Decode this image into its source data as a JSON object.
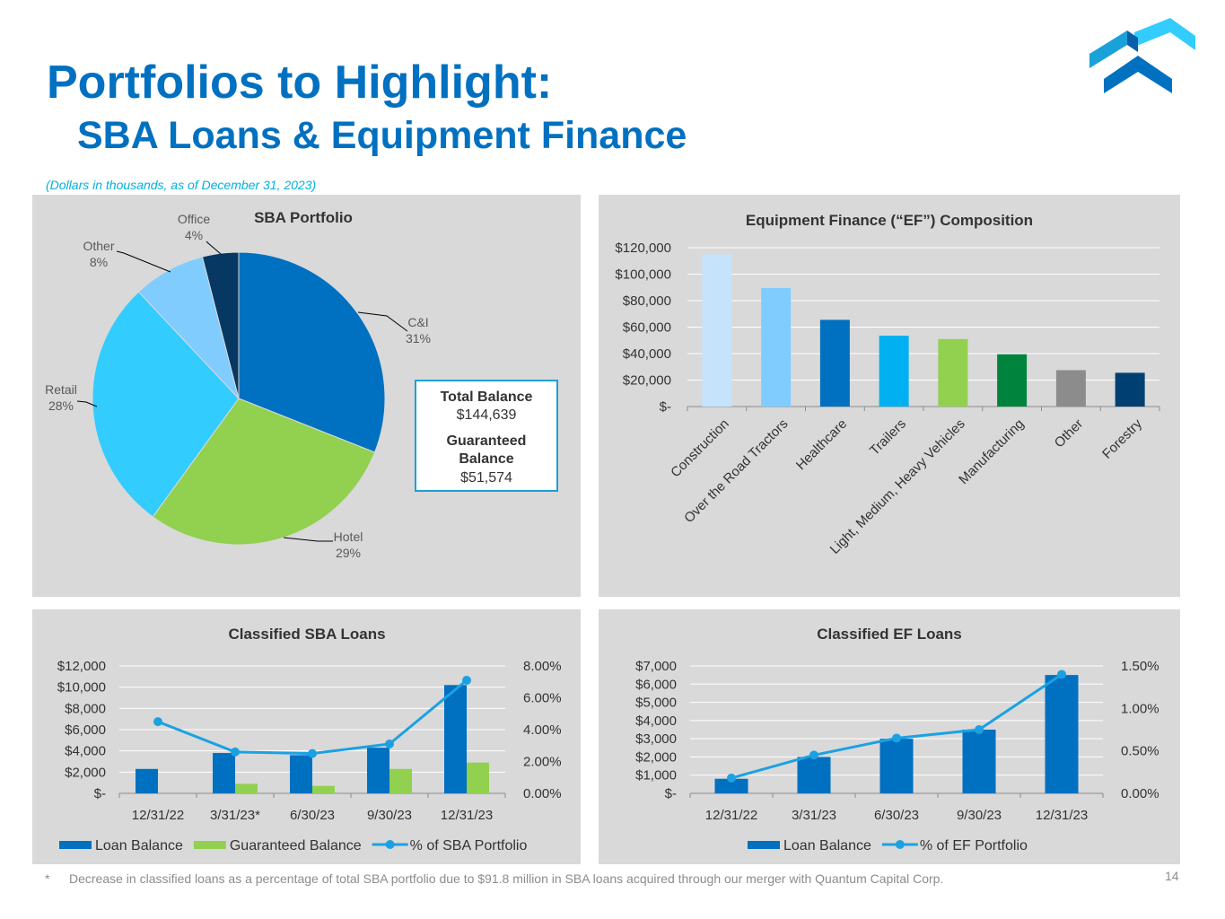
{
  "header": {
    "title": "Portfolios to Highlight:",
    "subtitle": "SBA Loans & Equipment Finance",
    "note": "(Dollars in thousands, as of December 31, 2023)"
  },
  "sba_box": {
    "total_label": "Total Balance",
    "total_value": "$144,639",
    "guaranteed_label_1": "Guaranteed",
    "guaranteed_label_2": "Balance",
    "guaranteed_value": "$51,574"
  },
  "footer": {
    "star": "*",
    "footnote": "Decrease in classified loans as a percentage of total SBA portfolio due to $91.8 million in SBA loans acquired through our merger with Quantum Capital Corp.",
    "page_number": "14"
  },
  "colors": {
    "brand": "#0070c0",
    "panel_bg": "#d9d9d9",
    "accent_line": "#1ba1d9"
  },
  "chart_data": [
    {
      "type": "pie",
      "title": "SBA Portfolio",
      "slices": [
        {
          "label": "C&I",
          "value": 31,
          "pct_label": "31%",
          "color": "#0070c0"
        },
        {
          "label": "Hotel",
          "value": 29,
          "pct_label": "29%",
          "color": "#92d050"
        },
        {
          "label": "Retail",
          "value": 28,
          "pct_label": "28%",
          "color": "#33ccff"
        },
        {
          "label": "Other",
          "value": 8,
          "pct_label": "8%",
          "color": "#80ccff"
        },
        {
          "label": "Office",
          "value": 4,
          "pct_label": "4%",
          "color": "#073763"
        }
      ]
    },
    {
      "type": "bar",
      "title": "Equipment Finance (“EF”) Composition",
      "categories": [
        "Construction",
        "Over the Road Tractors",
        "Healthcare",
        "Trailers",
        "Light, Medium, Heavy Vehicles",
        "Manufacturing",
        "Other",
        "Forestry"
      ],
      "values": [
        115000,
        89500,
        65500,
        53500,
        51000,
        39500,
        27500,
        25500
      ],
      "colors": [
        "#c5e3fb",
        "#80ccff",
        "#0070c0",
        "#00b0f0",
        "#92d050",
        "#00843d",
        "#8c8c8c",
        "#003f72"
      ],
      "ylim": [
        0,
        120000
      ],
      "yticks": [
        0,
        20000,
        40000,
        60000,
        80000,
        100000,
        120000
      ],
      "ytick_labels": [
        "$-",
        "$20,000",
        "$40,000",
        "$60,000",
        "$80,000",
        "$100,000",
        "$120,000"
      ]
    },
    {
      "type": "bar",
      "title": "Classified SBA Loans",
      "categories": [
        "12/31/22",
        "3/31/23*",
        "6/30/23",
        "9/30/23",
        "12/31/23"
      ],
      "series": [
        {
          "name": "Loan Balance",
          "values": [
            2300,
            3800,
            3600,
            4300,
            10200
          ],
          "color": "#0070c0"
        },
        {
          "name": "Guaranteed Balance",
          "values": [
            0,
            900,
            700,
            2300,
            2900
          ],
          "color": "#92d050"
        },
        {
          "name": "% of SBA Portfolio",
          "type": "line",
          "axis": "right",
          "values": [
            4.5,
            2.6,
            2.5,
            3.1,
            7.1
          ],
          "color": "#1ba1e2"
        }
      ],
      "ylim": [
        0,
        12000
      ],
      "yticks": [
        0,
        2000,
        4000,
        6000,
        8000,
        10000,
        12000
      ],
      "ytick_labels": [
        "$-",
        "$2,000",
        "$4,000",
        "$6,000",
        "$8,000",
        "$10,000",
        "$12,000"
      ],
      "y2lim": [
        0,
        8
      ],
      "y2ticks": [
        0,
        2,
        4,
        6,
        8
      ],
      "y2tick_labels": [
        "0.00%",
        "2.00%",
        "4.00%",
        "6.00%",
        "8.00%"
      ],
      "legend": "bottom"
    },
    {
      "type": "bar",
      "title": "Classified EF Loans",
      "categories": [
        "12/31/22",
        "3/31/23",
        "6/30/23",
        "9/30/23",
        "12/31/23"
      ],
      "series": [
        {
          "name": "Loan Balance",
          "values": [
            800,
            2000,
            3000,
            3500,
            6500
          ],
          "color": "#0070c0"
        },
        {
          "name": "% of EF Portfolio",
          "type": "line",
          "axis": "right",
          "values": [
            0.18,
            0.45,
            0.65,
            0.75,
            1.4
          ],
          "color": "#1ba1e2"
        }
      ],
      "ylim": [
        0,
        7000
      ],
      "yticks": [
        0,
        1000,
        2000,
        3000,
        4000,
        5000,
        6000,
        7000
      ],
      "ytick_labels": [
        "$-",
        "$1,000",
        "$2,000",
        "$3,000",
        "$4,000",
        "$5,000",
        "$6,000",
        "$7,000"
      ],
      "y2lim": [
        0,
        1.5
      ],
      "y2ticks": [
        0,
        0.5,
        1.0,
        1.5
      ],
      "y2tick_labels": [
        "0.00%",
        "0.50%",
        "1.00%",
        "1.50%"
      ],
      "legend": "bottom"
    }
  ]
}
